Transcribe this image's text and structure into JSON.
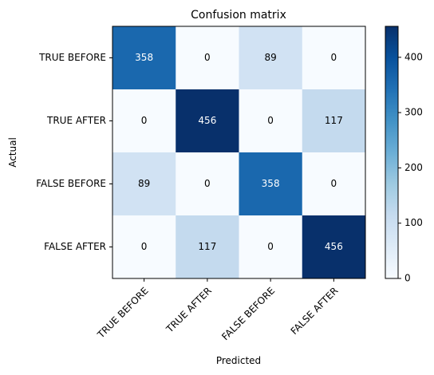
{
  "chart_data": {
    "type": "heatmap",
    "title": "Confusion matrix",
    "xlabel": "Predicted",
    "ylabel": "Actual",
    "x_categories": [
      "TRUE BEFORE",
      "TRUE AFTER",
      "FALSE BEFORE",
      "FALSE AFTER"
    ],
    "y_categories": [
      "TRUE BEFORE",
      "TRUE AFTER",
      "FALSE BEFORE",
      "FALSE AFTER"
    ],
    "values": [
      [
        358,
        0,
        89,
        0
      ],
      [
        0,
        456,
        0,
        117
      ],
      [
        89,
        0,
        358,
        0
      ],
      [
        0,
        117,
        0,
        456
      ]
    ],
    "colormap": "Blues",
    "colorbar": {
      "range": [
        0,
        456
      ],
      "ticks": [
        0,
        100,
        200,
        300,
        400
      ]
    },
    "x_tick_rotation_deg": 45,
    "grid": false
  }
}
